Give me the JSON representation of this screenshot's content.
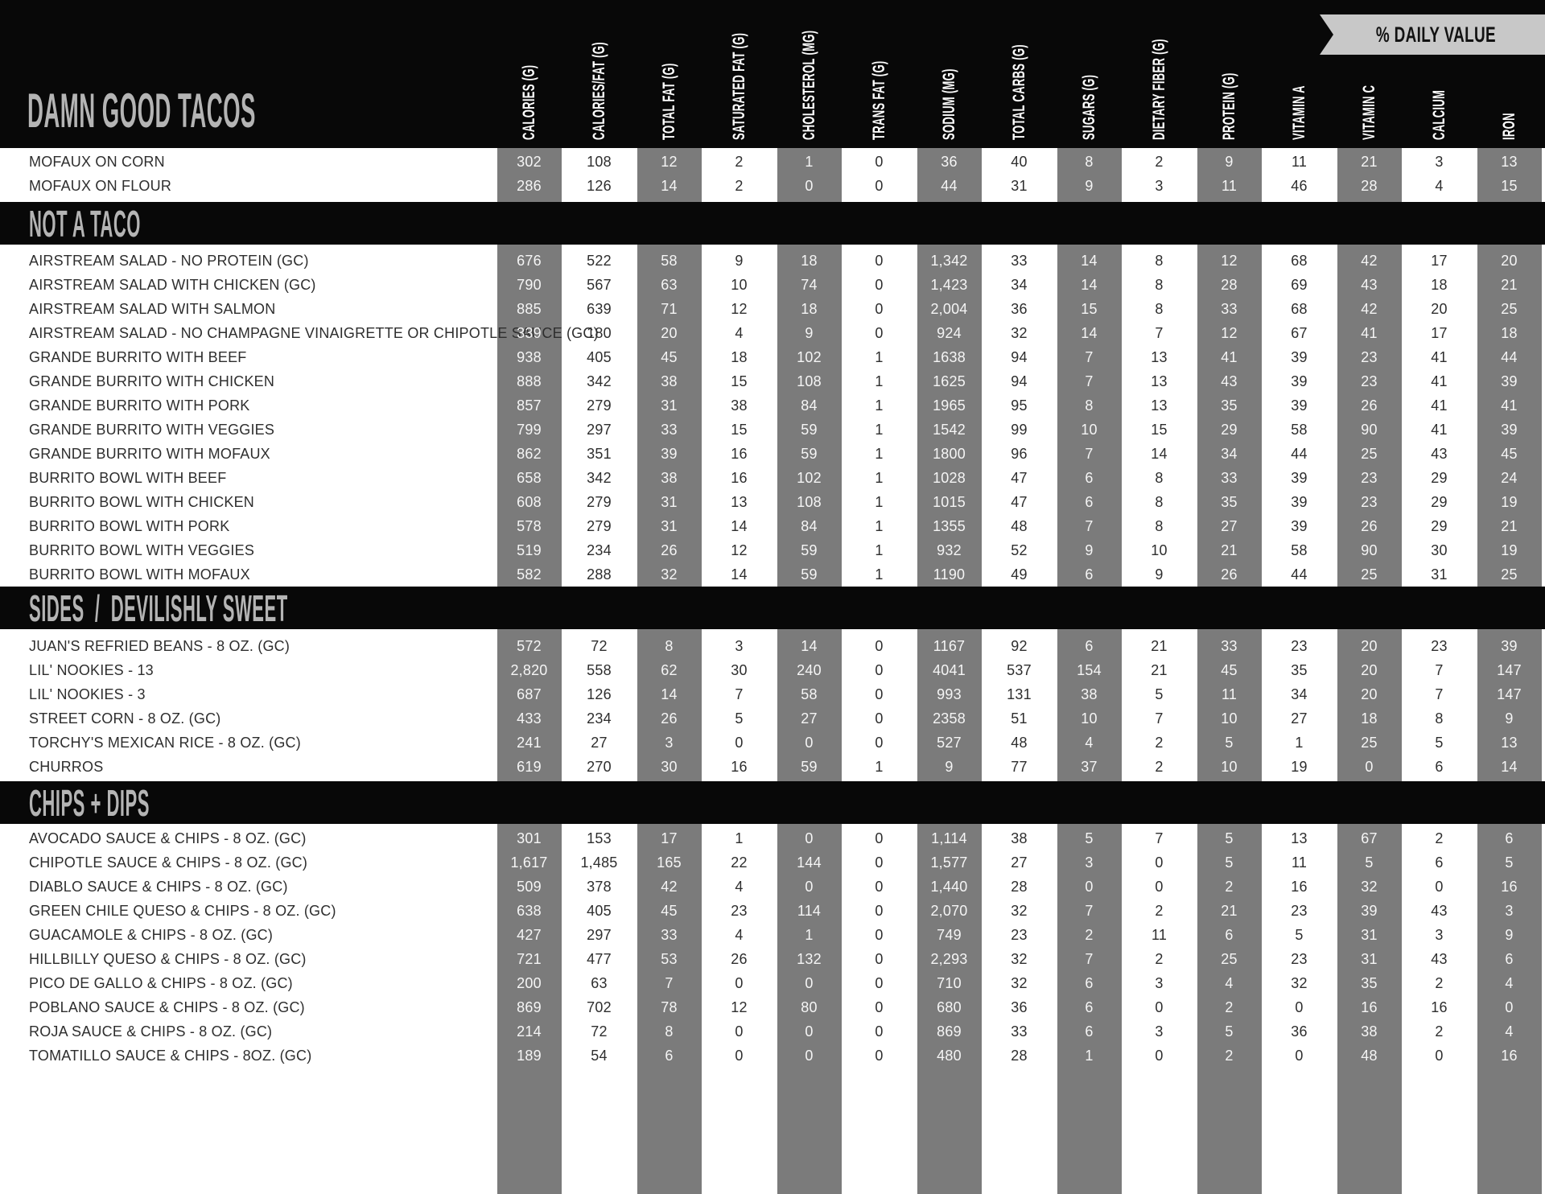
{
  "header": {
    "title": "DAMN GOOD TACOS",
    "daily_value_banner": "% DAILY VALUE",
    "columns": [
      "CALORIES (G)",
      "CALORIES/FAT (G)",
      "TOTAL FAT (G)",
      "SATURATED FAT (G)",
      "CHOLESTEROL (MG)",
      "TRANS FAT (G)",
      "SODIUM (MG)",
      "TOTAL CARBS (G)",
      "SUGARS (G)",
      "DIETARY FIBER (G)",
      "PROTEIN (G)",
      "VITAMIN A",
      "VITAMIN C",
      "CALCIUM",
      "IRON"
    ]
  },
  "colors": {
    "black": "#080808",
    "stripe_gray": "#7b7b7b",
    "banner_gray": "#c8c8c8",
    "title_gray": "#b4b4b4",
    "text_dark": "#2e2e2e",
    "text_light": "#f5f5f5"
  },
  "sections": [
    {
      "heading": "",
      "rows": [
        {
          "label": "MOFAUX ON CORN",
          "values": [
            "302",
            "108",
            "12",
            "2",
            "1",
            "0",
            "36",
            "40",
            "8",
            "2",
            "9",
            "11",
            "21",
            "3",
            "13"
          ]
        },
        {
          "label": "MOFAUX ON FLOUR",
          "values": [
            "286",
            "126",
            "14",
            "2",
            "0",
            "0",
            "44",
            "31",
            "9",
            "3",
            "11",
            "46",
            "28",
            "4",
            "15"
          ]
        }
      ]
    },
    {
      "heading": "NOT A TACO",
      "rows": [
        {
          "label": "AIRSTREAM SALAD - NO PROTEIN (GC)",
          "values": [
            "676",
            "522",
            "58",
            "9",
            "18",
            "0",
            "1,342",
            "33",
            "14",
            "8",
            "12",
            "68",
            "42",
            "17",
            "20"
          ]
        },
        {
          "label": "AIRSTREAM SALAD WITH CHICKEN (GC)",
          "values": [
            "790",
            "567",
            "63",
            "10",
            "74",
            "0",
            "1,423",
            "34",
            "14",
            "8",
            "28",
            "69",
            "43",
            "18",
            "21"
          ]
        },
        {
          "label": "AIRSTREAM SALAD WITH SALMON",
          "values": [
            "885",
            "639",
            "71",
            "12",
            "18",
            "0",
            "2,004",
            "36",
            "15",
            "8",
            "33",
            "68",
            "42",
            "20",
            "25"
          ]
        },
        {
          "label": "AIRSTREAM SALAD - NO CHAMPAGNE VINAIGRETTE OR CHIPOTLE SAUCE (GC)",
          "values": [
            "339",
            "180",
            "20",
            "4",
            "9",
            "0",
            "924",
            "32",
            "14",
            "7",
            "12",
            "67",
            "41",
            "17",
            "18"
          ]
        },
        {
          "label": "GRANDE BURRITO WITH BEEF",
          "values": [
            "938",
            "405",
            "45",
            "18",
            "102",
            "1",
            "1638",
            "94",
            "7",
            "13",
            "41",
            "39",
            "23",
            "41",
            "44"
          ]
        },
        {
          "label": "GRANDE BURRITO WITH CHICKEN",
          "values": [
            "888",
            "342",
            "38",
            "15",
            "108",
            "1",
            "1625",
            "94",
            "7",
            "13",
            "43",
            "39",
            "23",
            "41",
            "39"
          ]
        },
        {
          "label": "GRANDE BURRITO WITH PORK",
          "values": [
            "857",
            "279",
            "31",
            "38",
            "84",
            "1",
            "1965",
            "95",
            "8",
            "13",
            "35",
            "39",
            "26",
            "41",
            "41"
          ]
        },
        {
          "label": "GRANDE BURRITO WITH VEGGIES",
          "values": [
            "799",
            "297",
            "33",
            "15",
            "59",
            "1",
            "1542",
            "99",
            "10",
            "15",
            "29",
            "58",
            "90",
            "41",
            "39"
          ]
        },
        {
          "label": "GRANDE BURRITO WITH MOFAUX",
          "values": [
            "862",
            "351",
            "39",
            "16",
            "59",
            "1",
            "1800",
            "96",
            "7",
            "14",
            "34",
            "44",
            "25",
            "43",
            "45"
          ]
        },
        {
          "label": "BURRITO BOWL WITH BEEF",
          "values": [
            "658",
            "342",
            "38",
            "16",
            "102",
            "1",
            "1028",
            "47",
            "6",
            "8",
            "33",
            "39",
            "23",
            "29",
            "24"
          ]
        },
        {
          "label": "BURRITO BOWL WITH CHICKEN",
          "values": [
            "608",
            "279",
            "31",
            "13",
            "108",
            "1",
            "1015",
            "47",
            "6",
            "8",
            "35",
            "39",
            "23",
            "29",
            "19"
          ]
        },
        {
          "label": "BURRITO BOWL WITH PORK",
          "values": [
            "578",
            "279",
            "31",
            "14",
            "84",
            "1",
            "1355",
            "48",
            "7",
            "8",
            "27",
            "39",
            "26",
            "29",
            "21"
          ]
        },
        {
          "label": "BURRITO BOWL WITH VEGGIES",
          "values": [
            "519",
            "234",
            "26",
            "12",
            "59",
            "1",
            "932",
            "52",
            "9",
            "10",
            "21",
            "58",
            "90",
            "30",
            "19"
          ]
        },
        {
          "label": "BURRITO BOWL WITH MOFAUX",
          "values": [
            "582",
            "288",
            "32",
            "14",
            "59",
            "1",
            "1190",
            "49",
            "6",
            "9",
            "26",
            "44",
            "25",
            "31",
            "25"
          ]
        }
      ]
    },
    {
      "heading": "SIDES  /  DEVILISHLY SWEET",
      "rows": [
        {
          "label": "JUAN'S REFRIED BEANS - 8 OZ. (GC)",
          "values": [
            "572",
            "72",
            "8",
            "3",
            "14",
            "0",
            "1167",
            "92",
            "6",
            "21",
            "33",
            "23",
            "20",
            "23",
            "39"
          ]
        },
        {
          "label": "LIL' NOOKIES - 13",
          "values": [
            "2,820",
            "558",
            "62",
            "30",
            "240",
            "0",
            "4041",
            "537",
            "154",
            "21",
            "45",
            "35",
            "20",
            "7",
            "147"
          ]
        },
        {
          "label": "LIL' NOOKIES - 3",
          "values": [
            "687",
            "126",
            "14",
            "7",
            "58",
            "0",
            "993",
            "131",
            "38",
            "5",
            "11",
            "34",
            "20",
            "7",
            "147"
          ]
        },
        {
          "label": "STREET CORN - 8 OZ. (GC)",
          "values": [
            "433",
            "234",
            "26",
            "5",
            "27",
            "0",
            "2358",
            "51",
            "10",
            "7",
            "10",
            "27",
            "18",
            "8",
            "9"
          ]
        },
        {
          "label": "TORCHY'S MEXICAN RICE - 8 OZ. (GC)",
          "values": [
            "241",
            "27",
            "3",
            "0",
            "0",
            "0",
            "527",
            "48",
            "4",
            "2",
            "5",
            "1",
            "25",
            "5",
            "13"
          ]
        },
        {
          "label": "CHURROS",
          "values": [
            "619",
            "270",
            "30",
            "16",
            "59",
            "1",
            "9",
            "77",
            "37",
            "2",
            "10",
            "19",
            "0",
            "6",
            "14"
          ]
        }
      ]
    },
    {
      "heading": "CHIPS + DIPS",
      "rows": [
        {
          "label": "AVOCADO SAUCE & CHIPS - 8 OZ. (GC)",
          "values": [
            "301",
            "153",
            "17",
            "1",
            "0",
            "0",
            "1,114",
            "38",
            "5",
            "7",
            "5",
            "13",
            "67",
            "2",
            "6"
          ]
        },
        {
          "label": "CHIPOTLE SAUCE & CHIPS - 8 OZ. (GC)",
          "values": [
            "1,617",
            "1,485",
            "165",
            "22",
            "144",
            "0",
            "1,577",
            "27",
            "3",
            "0",
            "5",
            "11",
            "5",
            "6",
            "5"
          ]
        },
        {
          "label": "DIABLO SAUCE & CHIPS - 8 OZ. (GC)",
          "values": [
            "509",
            "378",
            "42",
            "4",
            "0",
            "0",
            "1,440",
            "28",
            "0",
            "0",
            "2",
            "16",
            "32",
            "0",
            "16"
          ]
        },
        {
          "label": "GREEN CHILE QUESO & CHIPS - 8 OZ. (GC)",
          "values": [
            "638",
            "405",
            "45",
            "23",
            "114",
            "0",
            "2,070",
            "32",
            "7",
            "2",
            "21",
            "23",
            "39",
            "43",
            "3"
          ]
        },
        {
          "label": "GUACAMOLE & CHIPS - 8 OZ. (GC)",
          "values": [
            "427",
            "297",
            "33",
            "4",
            "1",
            "0",
            "749",
            "23",
            "2",
            "11",
            "6",
            "5",
            "31",
            "3",
            "9"
          ]
        },
        {
          "label": "HILLBILLY QUESO & CHIPS - 8 OZ. (GC)",
          "values": [
            "721",
            "477",
            "53",
            "26",
            "132",
            "0",
            "2,293",
            "32",
            "7",
            "2",
            "25",
            "23",
            "31",
            "43",
            "6"
          ]
        },
        {
          "label": "PICO DE GALLO & CHIPS - 8 OZ. (GC)",
          "values": [
            "200",
            "63",
            "7",
            "0",
            "0",
            "0",
            "710",
            "32",
            "6",
            "3",
            "4",
            "32",
            "35",
            "2",
            "4"
          ]
        },
        {
          "label": "POBLANO SAUCE & CHIPS - 8 OZ. (GC)",
          "values": [
            "869",
            "702",
            "78",
            "12",
            "80",
            "0",
            "680",
            "36",
            "6",
            "0",
            "2",
            "0",
            "16",
            "16",
            "0"
          ]
        },
        {
          "label": "ROJA SAUCE & CHIPS - 8 OZ. (GC)",
          "values": [
            "214",
            "72",
            "8",
            "0",
            "0",
            "0",
            "869",
            "33",
            "6",
            "3",
            "5",
            "36",
            "38",
            "2",
            "4"
          ]
        },
        {
          "label": "TOMATILLO SAUCE & CHIPS - 8OZ. (GC)",
          "values": [
            "189",
            "54",
            "6",
            "0",
            "0",
            "0",
            "480",
            "28",
            "1",
            "0",
            "2",
            "0",
            "48",
            "0",
            "16"
          ]
        }
      ]
    }
  ]
}
